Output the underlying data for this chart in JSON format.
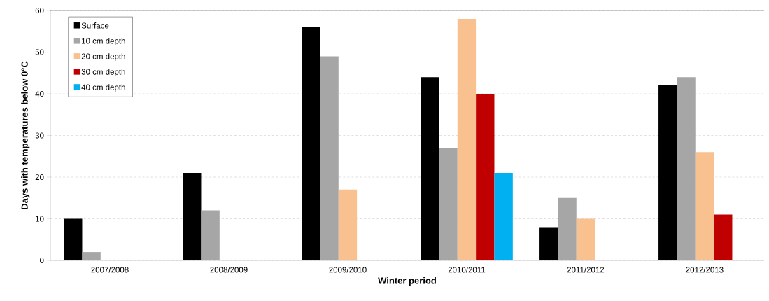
{
  "chart_data": {
    "type": "bar",
    "xlabel": "Winter period",
    "ylabel": "Days with temperatures below 0°C",
    "categories": [
      "2007/2008",
      "2008/2009",
      "2009/2010",
      "2010/2011",
      "2011/2012",
      "2012/2013"
    ],
    "series": [
      {
        "name": "Surface",
        "color": "#000000",
        "values": [
          10,
          21,
          56,
          44,
          8,
          42
        ]
      },
      {
        "name": "10 cm depth",
        "color": "#a6a6a6",
        "values": [
          2,
          12,
          49,
          27,
          15,
          44
        ]
      },
      {
        "name": "20 cm depth",
        "color": "#f9c090",
        "values": [
          null,
          null,
          17,
          58,
          10,
          26
        ]
      },
      {
        "name": "30 cm depth",
        "color": "#c00000",
        "values": [
          null,
          null,
          null,
          40,
          null,
          11
        ]
      },
      {
        "name": "40 cm depth",
        "color": "#00b0f0",
        "values": [
          null,
          null,
          null,
          21,
          null,
          null
        ]
      }
    ],
    "ylim": [
      0,
      60
    ],
    "yticks": [
      0,
      10,
      20,
      30,
      40,
      50,
      60
    ],
    "grid": "y",
    "legend": "top left"
  }
}
